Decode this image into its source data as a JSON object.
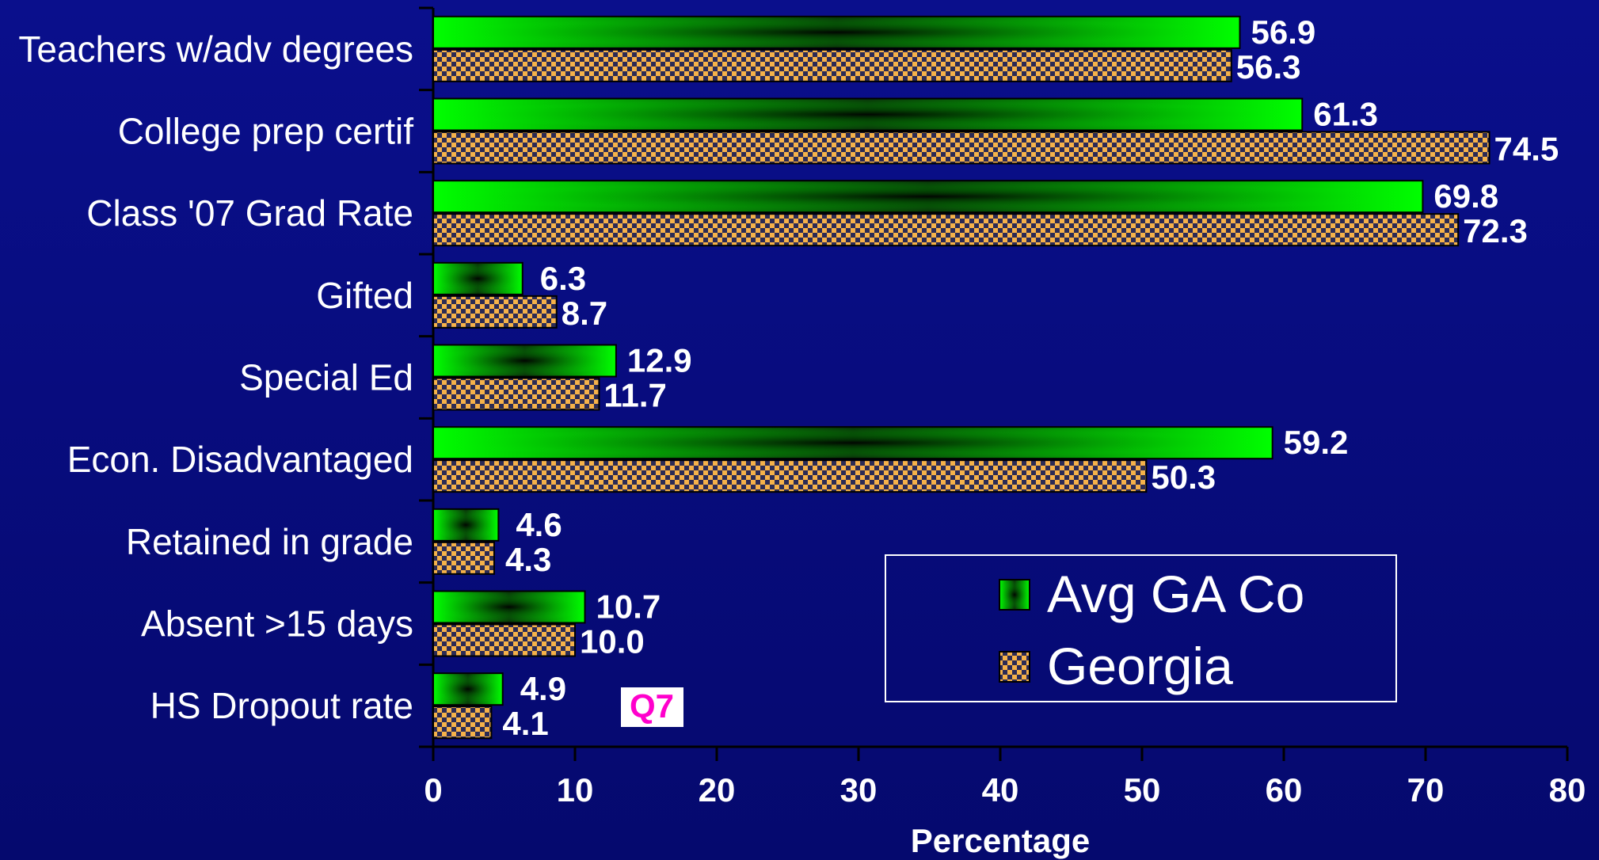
{
  "chart_data": {
    "type": "bar",
    "orientation": "horizontal",
    "categories": [
      "Teachers w/adv degrees",
      "College prep certif",
      "Class '07 Grad Rate",
      "Gifted",
      "Special Ed",
      "Econ. Disadvantaged",
      "Retained in grade",
      "Absent >15 days",
      "HS Dropout rate"
    ],
    "series": [
      {
        "name": "Avg GA Co",
        "values": [
          56.9,
          61.3,
          69.8,
          6.3,
          12.9,
          59.2,
          4.6,
          10.7,
          4.9
        ],
        "labels": [
          "56.9",
          "61.3",
          "69.8",
          "6.3",
          "12.9",
          "59.2",
          "4.6",
          "10.7",
          "4.9"
        ],
        "color": "#00ff00"
      },
      {
        "name": "Georgia",
        "values": [
          56.3,
          74.5,
          72.3,
          8.7,
          11.7,
          50.3,
          4.3,
          10.0,
          4.1
        ],
        "labels": [
          "56.3",
          "74.5",
          "72.3",
          "8.7",
          "11.7",
          "50.3",
          "4.3",
          "10.0",
          "4.1"
        ],
        "color": "#f5b24a"
      }
    ],
    "xlabel": "Percentage",
    "ylabel": "",
    "xlim": [
      0,
      80
    ],
    "xticks": [
      "0",
      "10",
      "20",
      "30",
      "40",
      "50",
      "60",
      "70",
      "80"
    ],
    "grid": false,
    "legend_position": "bottom-right"
  },
  "annotation": {
    "text": "Q7"
  },
  "colors": {
    "background": "#080d80",
    "bar1": "#00ff00",
    "bar2_fill": "#f5b24a",
    "bar2_check": "#1a1a3a",
    "annotation": "#ff00cc"
  }
}
